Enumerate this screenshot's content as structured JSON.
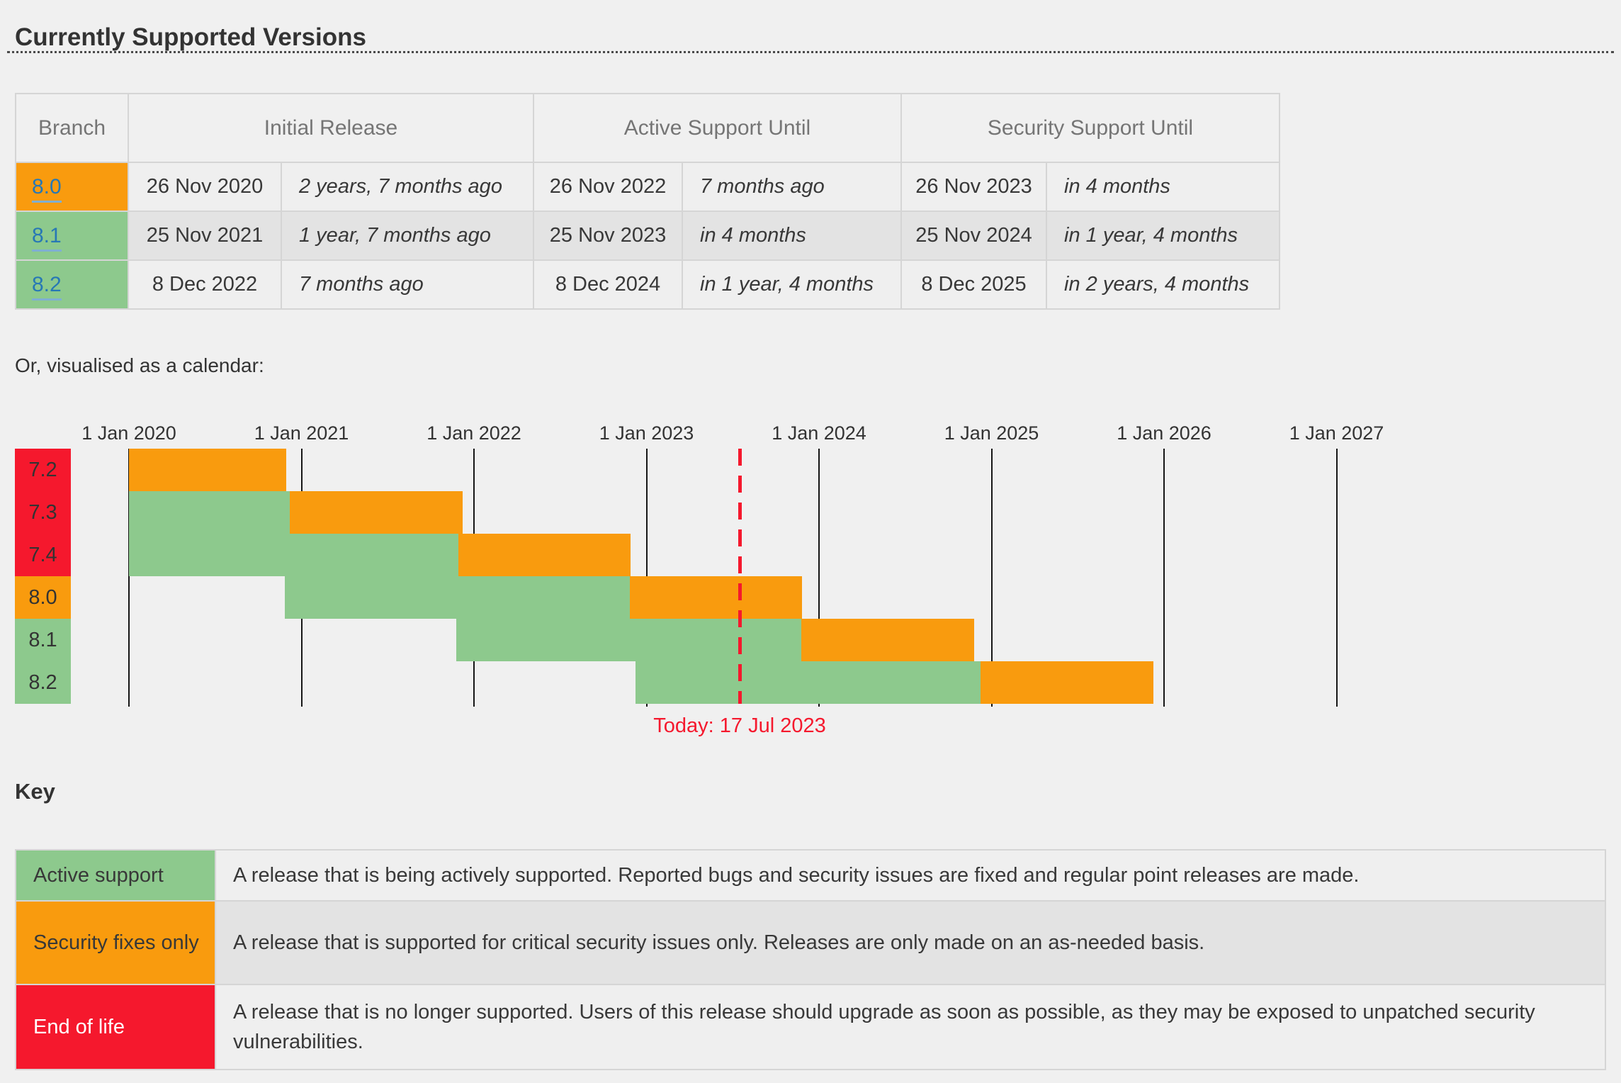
{
  "page": {
    "title": "Currently Supported Versions",
    "calendar_intro": "Or, visualised as a calendar:",
    "key_title": "Key"
  },
  "colors": {
    "active": "#8DC98D",
    "security": "#F99B0E",
    "eol": "#F5182D",
    "today": "#F5182D",
    "link": "#2778B5"
  },
  "support_table": {
    "headers": [
      "Branch",
      "Initial Release",
      "Active Support Until",
      "Security Support Until"
    ],
    "rows": [
      {
        "branch": "8.0",
        "branch_color": "security",
        "initial_release": "26 Nov 2020",
        "initial_release_rel": "2 years, 7 months ago",
        "active_until": "26 Nov 2022",
        "active_until_rel": "7 months ago",
        "security_until": "26 Nov 2023",
        "security_until_rel": "in 4 months"
      },
      {
        "branch": "8.1",
        "branch_color": "active",
        "initial_release": "25 Nov 2021",
        "initial_release_rel": "1 year, 7 months ago",
        "active_until": "25 Nov 2023",
        "active_until_rel": "in 4 months",
        "security_until": "25 Nov 2024",
        "security_until_rel": "in 1 year, 4 months"
      },
      {
        "branch": "8.2",
        "branch_color": "active",
        "initial_release": "8 Dec 2022",
        "initial_release_rel": "7 months ago",
        "active_until": "8 Dec 2024",
        "active_until_rel": "in 1 year, 4 months",
        "security_until": "8 Dec 2025",
        "security_until_rel": "in 2 years, 4 months"
      }
    ]
  },
  "chart_data": {
    "type": "gantt-calendar",
    "x_ticks": [
      "1 Jan 2020",
      "1 Jan 2021",
      "1 Jan 2022",
      "1 Jan 2023",
      "1 Jan 2024",
      "1 Jan 2025",
      "1 Jan 2026",
      "1 Jan 2027"
    ],
    "x_range_years": [
      2020,
      2027
    ],
    "legend": {
      "active": "Active support",
      "security": "Security fixes only",
      "eol": "End of life"
    },
    "rows": [
      {
        "label": "7.2",
        "label_group": "eol",
        "segments": [
          {
            "status": "security",
            "start": 2020.0,
            "end": 2020.913
          }
        ]
      },
      {
        "label": "7.3",
        "label_group": "eol",
        "segments": [
          {
            "status": "active",
            "start": 2020.0,
            "end": 2020.934
          },
          {
            "status": "security",
            "start": 2020.934,
            "end": 2021.934
          }
        ]
      },
      {
        "label": "7.4",
        "label_group": "eol",
        "segments": [
          {
            "status": "active",
            "start": 2020.0,
            "end": 2021.908
          },
          {
            "status": "security",
            "start": 2021.908,
            "end": 2022.908
          }
        ]
      },
      {
        "label": "8.0",
        "label_group": "security",
        "segments": [
          {
            "status": "active",
            "start": 2020.902,
            "end": 2022.902
          },
          {
            "status": "security",
            "start": 2022.902,
            "end": 2023.902
          }
        ]
      },
      {
        "label": "8.1",
        "label_group": "active",
        "segments": [
          {
            "status": "active",
            "start": 2021.899,
            "end": 2023.899
          },
          {
            "status": "security",
            "start": 2023.899,
            "end": 2024.899
          }
        ]
      },
      {
        "label": "8.2",
        "label_group": "active",
        "segments": [
          {
            "status": "active",
            "start": 2022.937,
            "end": 2024.937
          },
          {
            "status": "security",
            "start": 2024.937,
            "end": 2025.937
          }
        ]
      }
    ],
    "today": {
      "value": 2023.54,
      "label": "Today: 17 Jul 2023"
    }
  },
  "key_table": {
    "rows": [
      {
        "label": "Active support",
        "status": "active",
        "description": "A release that is being actively supported. Reported bugs and security issues are fixed and regular point releases are made."
      },
      {
        "label": "Security fixes only",
        "status": "security",
        "description": "A release that is supported for critical security issues only. Releases are only made on an as-needed basis."
      },
      {
        "label": "End of life",
        "status": "eol",
        "description": "A release that is no longer supported. Users of this release should upgrade as soon as possible, as they may be exposed to unpatched security vulnerabilities."
      }
    ]
  }
}
